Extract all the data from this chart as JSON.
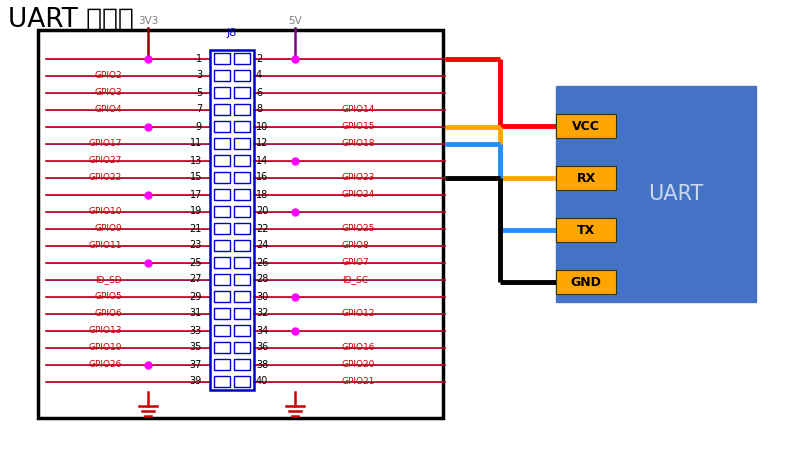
{
  "title": "UART 시리얼",
  "bg_color": "#ffffff",
  "border_color": "#000000",
  "gpio_color": "#cc0000",
  "purple_color": "#800080",
  "dark_red": "#8b0000",
  "pin_number_color": "#000000",
  "connector_border": "#0000cc",
  "power_label_color": "#808080",
  "dot_color": "#ff00ff",
  "wire_red": "#ff0000",
  "wire_orange": "#ffa500",
  "wire_blue": "#1e90ff",
  "wire_black": "#000000",
  "uart_box_color": "#4472c4",
  "uart_label_color": "#c8d8f0",
  "pin_label_bg": "#ffa500",
  "j8_label": "J8",
  "label_3v3": "3V3",
  "label_5v": "5V",
  "uart_text": "UART",
  "vcc_label": "VCC",
  "rx_label": "RX",
  "tx_label": "TX",
  "gnd_label": "GND",
  "left_pins": [
    [
      "",
      1
    ],
    [
      "GPIO2",
      3
    ],
    [
      "GPIO3",
      5
    ],
    [
      "GPIO4",
      7
    ],
    [
      "",
      9
    ],
    [
      "GPIO17",
      11
    ],
    [
      "GPIO27",
      13
    ],
    [
      "GPIO22",
      15
    ],
    [
      "",
      17
    ],
    [
      "GPIO10",
      19
    ],
    [
      "GPIO9",
      21
    ],
    [
      "GPIO11",
      23
    ],
    [
      "",
      25
    ],
    [
      "ID_SD",
      27
    ],
    [
      "GPIO5",
      29
    ],
    [
      "GPIO6",
      31
    ],
    [
      "GPIO13",
      33
    ],
    [
      "GPIO19",
      35
    ],
    [
      "GPIO26",
      37
    ],
    [
      "",
      39
    ]
  ],
  "right_pins": [
    [
      "",
      2
    ],
    [
      "",
      4
    ],
    [
      "",
      6
    ],
    [
      "GPIO14",
      8
    ],
    [
      "GPIO15",
      10
    ],
    [
      "GPIO18",
      12
    ],
    [
      "",
      14
    ],
    [
      "GPIO23",
      16
    ],
    [
      "GPIO24",
      18
    ],
    [
      "",
      20
    ],
    [
      "GPIO25",
      22
    ],
    [
      "GPIO8",
      24
    ],
    [
      "GPIO7",
      26
    ],
    [
      "ID_SC",
      28
    ],
    [
      "",
      30
    ],
    [
      "GPIO12",
      32
    ],
    [
      "",
      34
    ],
    [
      "GPIO16",
      36
    ],
    [
      "GPIO20",
      38
    ],
    [
      "GPIO21",
      40
    ]
  ],
  "left_dots": [
    0,
    4,
    8,
    12,
    18
  ],
  "right_dots": [
    0,
    6,
    9,
    14,
    16
  ],
  "wire_gpio_rows": [
    0,
    3,
    4,
    6
  ],
  "wire_uart_idxs": [
    0,
    1,
    2,
    3
  ],
  "wire_colors": [
    "#ff0000",
    "#ffa500",
    "#1e90ff",
    "#000000"
  ]
}
